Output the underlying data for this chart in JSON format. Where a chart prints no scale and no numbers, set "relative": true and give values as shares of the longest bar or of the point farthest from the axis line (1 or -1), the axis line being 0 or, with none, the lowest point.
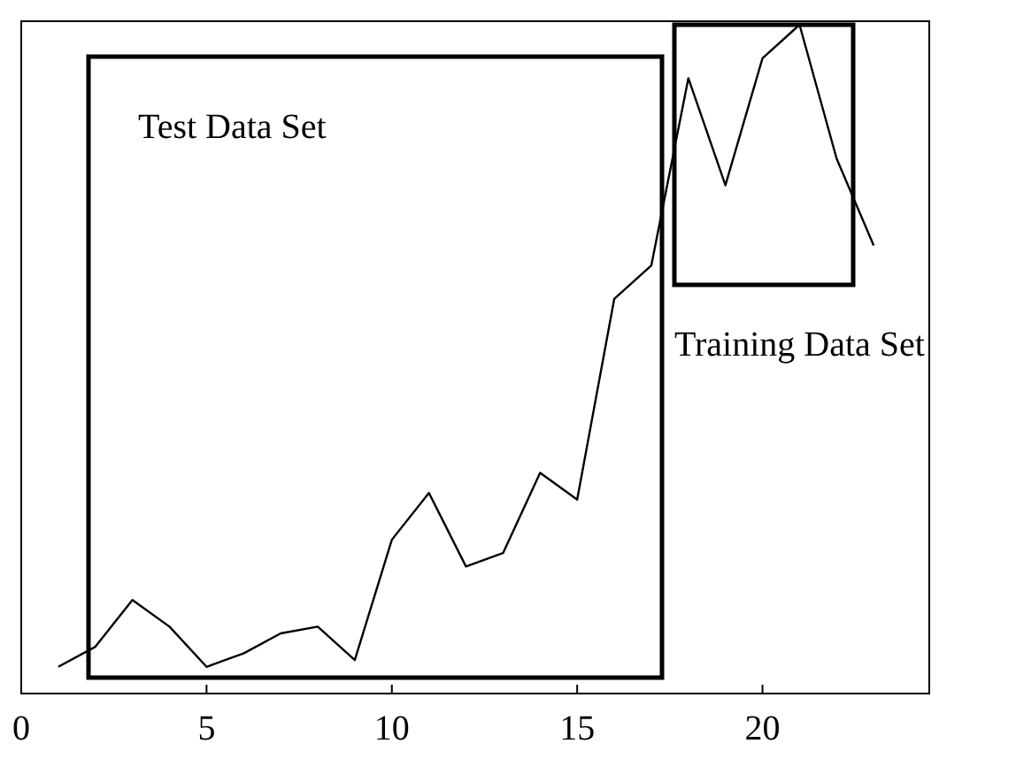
{
  "chart_data": {
    "type": "line",
    "relative": true,
    "x": [
      1,
      2,
      3,
      4,
      5,
      6,
      7,
      8,
      9,
      10,
      11,
      12,
      13,
      14,
      15,
      16,
      17,
      18,
      19,
      20,
      21,
      22,
      23
    ],
    "values": [
      0.04,
      0.07,
      0.14,
      0.1,
      0.04,
      0.06,
      0.09,
      0.1,
      0.05,
      0.23,
      0.3,
      0.19,
      0.21,
      0.33,
      0.29,
      0.59,
      0.64,
      0.92,
      0.76,
      0.95,
      1,
      0.8,
      0.67
    ],
    "color": "#000000",
    "xlim": [
      0,
      24.5
    ],
    "xticks": [
      0,
      5,
      10,
      15,
      20
    ],
    "annotations": [
      "Test Data Set",
      "Training Data Set"
    ]
  }
}
